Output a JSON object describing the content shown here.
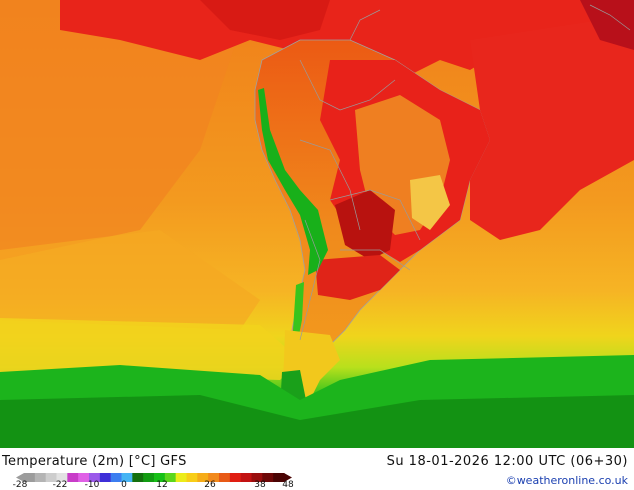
{
  "map": {
    "variable_label": "Temperature (2m) [°C] GFS",
    "valid_time": "Su 18-01-2026 12:00 UTC (06+30)",
    "credit": "©weatheronline.co.uk",
    "region": "South America",
    "colors": {
      "ocean_warm": "#f28a1c",
      "ocean_hot": "#f5a41e",
      "land_hot": "#e81d12",
      "land_very_hot": "#c4110f",
      "cool_yellow": "#f4d81c",
      "cold_green": "#16b41b",
      "mountain_green": "#1ec81f",
      "border_gray": "#9e9e9e"
    }
  },
  "legend": {
    "ticks": [
      "-28",
      "-22",
      "-10",
      "0",
      "12",
      "26",
      "38",
      "48"
    ],
    "colors": [
      "#9c9c9c",
      "#b4b4b4",
      "#cdcdcd",
      "#e2e2e2",
      "#c83cc8",
      "#e060e6",
      "#9b59ea",
      "#3e2fd8",
      "#3c7ef0",
      "#46b4f4",
      "#14700e",
      "#129c12",
      "#16c016",
      "#5cd61c",
      "#ecec1a",
      "#f8ce18",
      "#f6ac18",
      "#f28a1c",
      "#e85a16",
      "#e01e12",
      "#c21212",
      "#9a0e0e",
      "#6e0808",
      "#4a0404"
    ]
  }
}
